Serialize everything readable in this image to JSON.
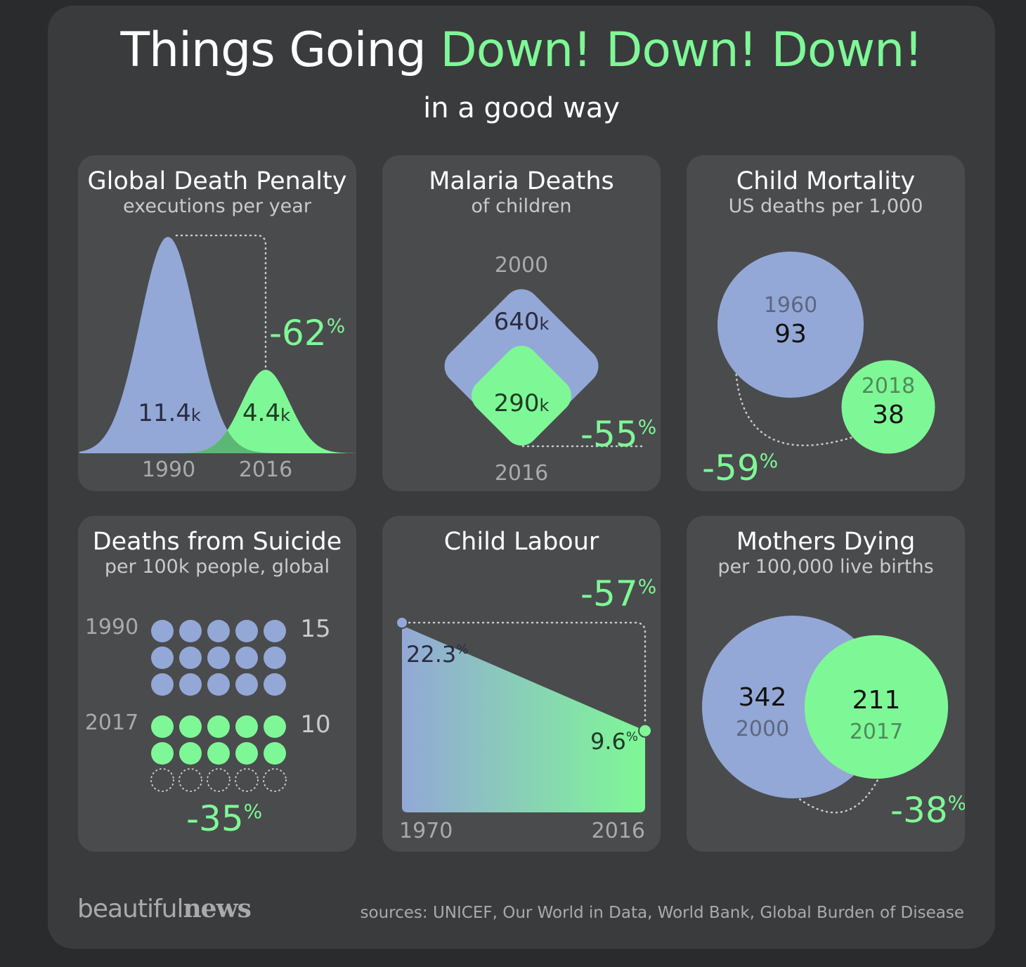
{
  "header": {
    "title_plain": "Things Going ",
    "title_accent": "Down! Down! Down!",
    "subtitle": "in a good way"
  },
  "colors": {
    "before": "#93a8d6",
    "after": "#7ef896",
    "card": "#4a4b4d",
    "frame": "#3a3b3d",
    "background": "#2a2b2d"
  },
  "cards": {
    "death_penalty": {
      "title": "Global Death Penalty",
      "subtitle": "executions per year"
    },
    "malaria": {
      "title": "Malaria Deaths",
      "subtitle": "of children"
    },
    "child_mortality": {
      "title": "Child Mortality",
      "subtitle": "US deaths per 1,000"
    },
    "suicide": {
      "title": "Deaths from Suicide",
      "subtitle": "per 100k people, global"
    },
    "child_labour": {
      "title": "Child Labour",
      "subtitle": ""
    },
    "mothers": {
      "title": "Mothers Dying",
      "subtitle": "per 100,000 live births"
    }
  },
  "chart_data": [
    {
      "type": "area",
      "id": "death_penalty",
      "x": [
        "1990",
        "2016"
      ],
      "values": [
        11.4,
        4.4
      ],
      "value_labels": [
        "11.4",
        "4.4"
      ],
      "unit": "k",
      "change_value": "-62",
      "change_unit": "%"
    },
    {
      "type": "area",
      "id": "malaria",
      "x": [
        "2000",
        "2016"
      ],
      "values": [
        640,
        290
      ],
      "value_labels": [
        "640",
        "290"
      ],
      "unit": "k",
      "change_value": "-55",
      "change_unit": "%"
    },
    {
      "type": "scatter",
      "id": "child_mortality",
      "x": [
        "1960",
        "2018"
      ],
      "values": [
        93,
        38
      ],
      "value_labels": [
        "93",
        "38"
      ],
      "change_value": "-59",
      "change_unit": "%"
    },
    {
      "type": "scatter",
      "id": "suicide",
      "x": [
        "1990",
        "2017"
      ],
      "values": [
        15,
        10
      ],
      "value_labels": [
        "15",
        "10"
      ],
      "change_value": "-35",
      "change_unit": "%"
    },
    {
      "type": "line",
      "id": "child_labour",
      "x": [
        "1970",
        "2016"
      ],
      "values": [
        22.3,
        9.6
      ],
      "value_labels": [
        "22.3",
        "9.6"
      ],
      "unit": "%",
      "change_value": "-57",
      "change_unit": "%"
    },
    {
      "type": "scatter",
      "id": "mothers",
      "x": [
        "2000",
        "2017"
      ],
      "values": [
        342,
        211
      ],
      "value_labels": [
        "342",
        "211"
      ],
      "change_value": "-38",
      "change_unit": "%"
    }
  ],
  "footer": {
    "logo_light": "beautiful",
    "logo_bold": "news",
    "sources": "sources: UNICEF, Our World in Data, World Bank, Global Burden of Disease"
  }
}
